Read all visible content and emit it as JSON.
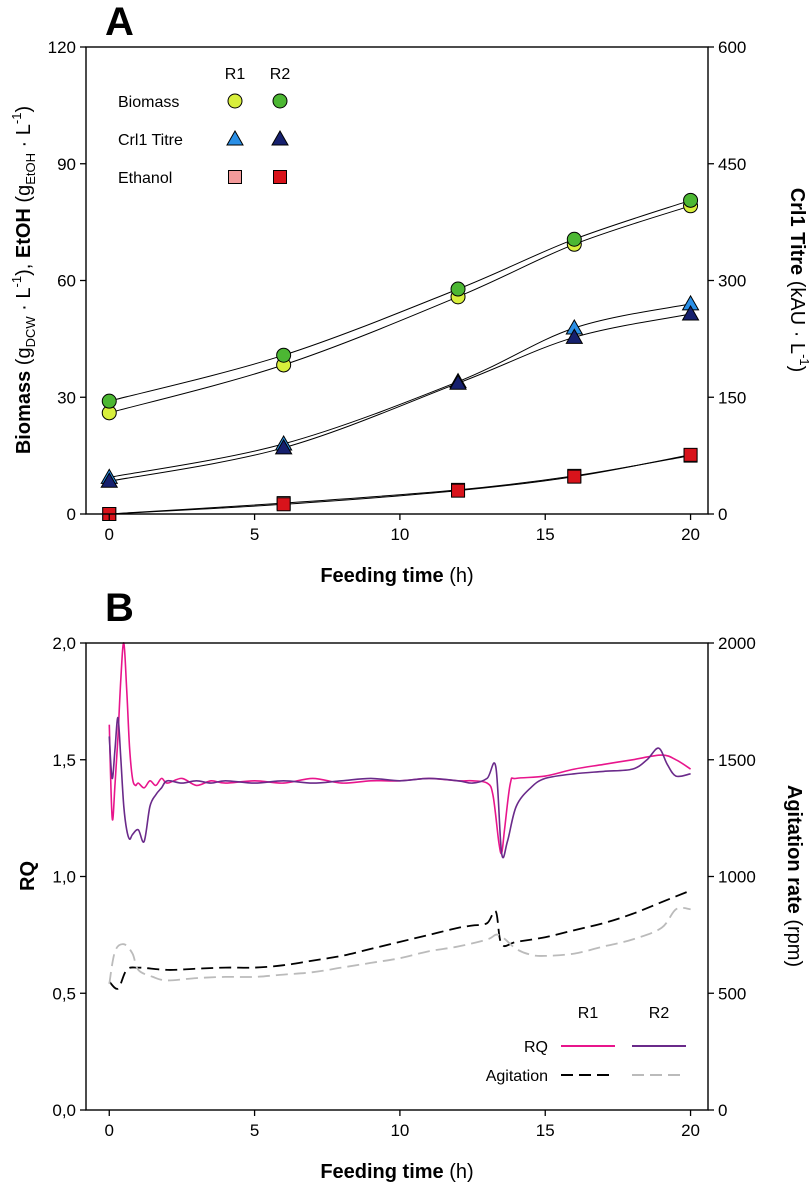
{
  "chart_data": [
    {
      "panel": "A",
      "type": "scatter",
      "xlabel": {
        "bold": "Feeding time",
        "normal": " (h)"
      },
      "ylabel_left": {
        "biomass_bold": "Biomass",
        "biomass_units": " (g",
        "biomass_sub": "DCW",
        "biomass_mid": " · L",
        "biomass_sup": "-1",
        "sep": "), ",
        "etoh_bold": "EtOH",
        "etoh_units": " (g",
        "etoh_sub": "EtOH",
        "etoh_mid": " · L",
        "etoh_sup": "-1",
        "close": ")"
      },
      "ylabel_right": {
        "bold": "Crl1 Titre",
        "units": " (kAU · L",
        "sup": "-1",
        "close": ")"
      },
      "xlim": [
        -0.8,
        20.6
      ],
      "ylim_left": [
        0,
        120
      ],
      "ylim_right": [
        0,
        600
      ],
      "xticks": [
        0,
        5,
        10,
        15,
        20
      ],
      "yticks_left": [
        0,
        30,
        60,
        90,
        120
      ],
      "yticks_right": [
        0,
        150,
        300,
        450,
        600
      ],
      "legend": {
        "header": [
          "R1",
          "R2"
        ],
        "rows": [
          {
            "label": "Biomass",
            "marker": "circle",
            "r1": "#d8ef3c",
            "r2": "#4cb733"
          },
          {
            "label": "Crl1 Titre",
            "marker": "triangle",
            "r1": "#2a8fe6",
            "r2": "#16206e"
          },
          {
            "label": "Ethanol",
            "marker": "square",
            "r1": "#f39a9a",
            "r2": "#d8131b"
          }
        ]
      },
      "series": [
        {
          "name": "Biomass R1",
          "axis": "left",
          "marker": "circle",
          "color": "#d8ef3c",
          "x": [
            0,
            6,
            12,
            16,
            20
          ],
          "y": [
            26,
            38.3,
            55.8,
            69.3,
            79.2
          ]
        },
        {
          "name": "Biomass R2",
          "axis": "left",
          "marker": "circle",
          "color": "#4cb733",
          "x": [
            0,
            6,
            12,
            16,
            20
          ],
          "y": [
            29,
            40.8,
            57.8,
            70.6,
            80.6
          ]
        },
        {
          "name": "Crl1 Titre R1",
          "axis": "right",
          "marker": "triangle",
          "color": "#2a8fe6",
          "x": [
            0,
            6,
            12,
            16,
            20
          ],
          "y": [
            47,
            90,
            170,
            239,
            270
          ]
        },
        {
          "name": "Crl1 Titre R2",
          "axis": "right",
          "marker": "triangle",
          "color": "#16206e",
          "x": [
            0,
            6,
            12,
            16,
            20
          ],
          "y": [
            42,
            85,
            168,
            227,
            257
          ]
        },
        {
          "name": "Ethanol R1",
          "axis": "left",
          "marker": "square",
          "color": "#f39a9a",
          "x": [
            0,
            6,
            12,
            16,
            20
          ],
          "y": [
            0,
            2.8,
            6.2,
            9.8,
            15
          ]
        },
        {
          "name": "Ethanol R2",
          "axis": "left",
          "marker": "square",
          "color": "#d8131b",
          "x": [
            0,
            6,
            12,
            16,
            20
          ],
          "y": [
            0,
            2.5,
            6.0,
            9.6,
            15.2
          ]
        }
      ]
    },
    {
      "panel": "B",
      "type": "line",
      "xlabel": {
        "bold": "Feeding time",
        "normal": " (h)"
      },
      "ylabel_left": {
        "bold": "RQ"
      },
      "ylabel_right": {
        "bold": "Agitation rate",
        "units": " (rpm)"
      },
      "xlim": [
        -0.8,
        20.6
      ],
      "ylim_left": [
        0,
        2
      ],
      "ylim_right": [
        0,
        2000
      ],
      "xticks": [
        0,
        5,
        10,
        15,
        20
      ],
      "yticks_left": [
        "0,0",
        "0,5",
        "1,0",
        "1,5",
        "2,0"
      ],
      "yticks_left_values": [
        0,
        0.5,
        1,
        1.5,
        2
      ],
      "yticks_right": [
        0,
        500,
        1000,
        1500,
        2000
      ],
      "legend": {
        "header": [
          "R1",
          "R2"
        ],
        "rows": [
          {
            "label": "RQ",
            "style": "solid",
            "r1": "#e8158c",
            "r2": "#6a2a8a"
          },
          {
            "label": "Agitation",
            "style": "dashed",
            "r1": "#000000",
            "r2": "#bbbbbb"
          }
        ]
      },
      "series": [
        {
          "name": "RQ R1",
          "axis": "left",
          "style": "solid",
          "color": "#e8158c",
          "x": [
            0,
            0.1,
            0.2,
            0.3,
            0.4,
            0.5,
            0.6,
            0.7,
            0.8,
            0.9,
            1.0,
            1.2,
            1.4,
            1.6,
            1.8,
            2,
            2.5,
            3,
            3.5,
            4,
            5,
            6,
            7,
            8,
            9,
            10,
            11,
            12,
            12.5,
            13,
            13.2,
            13.4,
            13.5,
            13.6,
            13.8,
            14,
            15,
            16,
            17,
            18,
            19,
            19.5,
            20
          ],
          "y": [
            1.65,
            1.25,
            1.4,
            1.6,
            1.85,
            2.0,
            1.8,
            1.55,
            1.42,
            1.39,
            1.4,
            1.38,
            1.41,
            1.39,
            1.42,
            1.4,
            1.42,
            1.39,
            1.41,
            1.4,
            1.41,
            1.4,
            1.42,
            1.4,
            1.41,
            1.41,
            1.42,
            1.41,
            1.41,
            1.4,
            1.35,
            1.15,
            1.1,
            1.2,
            1.4,
            1.42,
            1.43,
            1.46,
            1.48,
            1.5,
            1.52,
            1.5,
            1.46
          ]
        },
        {
          "name": "RQ R2",
          "axis": "left",
          "style": "solid",
          "color": "#6a2a8a",
          "x": [
            0,
            0.1,
            0.2,
            0.3,
            0.4,
            0.5,
            0.6,
            0.7,
            0.8,
            1.0,
            1.2,
            1.4,
            1.6,
            1.8,
            2,
            2.5,
            3,
            3.5,
            4,
            5,
            6,
            7,
            8,
            9,
            10,
            11,
            12,
            12.5,
            13,
            13.3,
            13.5,
            13.7,
            14,
            14.5,
            15,
            16,
            17,
            18,
            18.5,
            18.9,
            19.2,
            19.5,
            20
          ],
          "y": [
            1.6,
            1.42,
            1.55,
            1.68,
            1.5,
            1.3,
            1.2,
            1.16,
            1.18,
            1.2,
            1.15,
            1.3,
            1.35,
            1.38,
            1.41,
            1.4,
            1.41,
            1.4,
            1.41,
            1.4,
            1.41,
            1.4,
            1.41,
            1.42,
            1.41,
            1.42,
            1.41,
            1.4,
            1.42,
            1.47,
            1.1,
            1.15,
            1.3,
            1.38,
            1.42,
            1.44,
            1.45,
            1.46,
            1.5,
            1.55,
            1.48,
            1.43,
            1.44
          ]
        },
        {
          "name": "Agitation R1",
          "axis": "right",
          "style": "dashed",
          "color": "#000000",
          "x": [
            0,
            0.3,
            0.6,
            1,
            2,
            3,
            4,
            5,
            6,
            7,
            8,
            9,
            10,
            11,
            12,
            12.5,
            13,
            13.3,
            13.5,
            14,
            15,
            16,
            17,
            18,
            19,
            20
          ],
          "y": [
            550,
            520,
            600,
            610,
            600,
            605,
            610,
            610,
            620,
            640,
            660,
            690,
            720,
            750,
            780,
            790,
            800,
            850,
            710,
            720,
            740,
            770,
            800,
            840,
            890,
            940
          ]
        },
        {
          "name": "Agitation R2",
          "axis": "right",
          "style": "dashed",
          "color": "#bbbbbb",
          "x": [
            0,
            0.2,
            0.5,
            0.8,
            1,
            1.5,
            2,
            3,
            4,
            5,
            6,
            7,
            8,
            9,
            10,
            11,
            12,
            13,
            13.4,
            14,
            14.5,
            15,
            16,
            17,
            18,
            19,
            19.5,
            20
          ],
          "y": [
            540,
            680,
            710,
            670,
            600,
            570,
            555,
            565,
            570,
            570,
            580,
            590,
            610,
            630,
            650,
            680,
            700,
            730,
            750,
            690,
            665,
            660,
            670,
            700,
            730,
            780,
            860,
            860
          ]
        }
      ]
    }
  ]
}
